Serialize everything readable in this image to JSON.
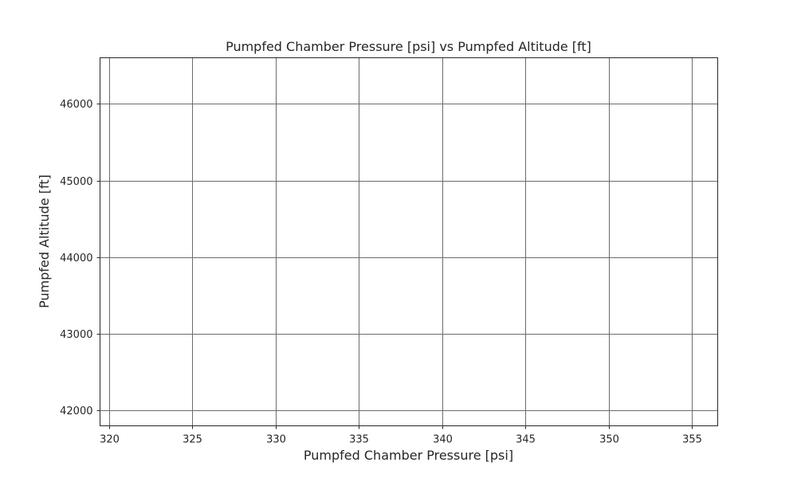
{
  "chart_data": {
    "type": "scatter",
    "title": "Pumpfed Chamber Pressure [psi] vs Pumpfed Altitude [ft]",
    "xlabel": "Pumpfed Chamber Pressure [psi]",
    "ylabel": "Pumpfed Altitude [ft]",
    "xlim": [
      319.45,
      356.55
    ],
    "ylim": [
      41800,
      46600
    ],
    "xticks": [
      320,
      325,
      330,
      335,
      340,
      345,
      350,
      355
    ],
    "yticks": [
      42000,
      43000,
      44000,
      45000,
      46000
    ],
    "grid": true,
    "series": [],
    "colors": {
      "grid": "#6b6b6b",
      "frame": "#262626",
      "text": "#262626",
      "background": "#ffffff"
    }
  }
}
